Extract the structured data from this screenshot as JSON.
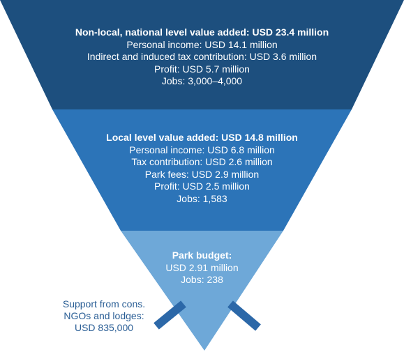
{
  "tiers": [
    {
      "heading": "Non-local, national level value added: USD 23.4 million",
      "lines": [
        "Personal income: USD 14.1 million",
        "Indirect and induced tax contribution: USD 3.6 million",
        "Profit: USD 5.7 million",
        "Jobs: 3,000–4,000"
      ],
      "color": "#1d4f7e"
    },
    {
      "heading": "Local level value added: USD 14.8 million",
      "lines": [
        "Personal income: USD 6.8 million",
        "Tax contribution: USD 2.6 million",
        "Park fees: USD 2.9 million",
        "Profit: USD 2.5 million",
        "Jobs: 1,583"
      ],
      "color": "#2c74b8"
    },
    {
      "heading": "Park budget:",
      "lines": [
        "USD 2.91 million",
        "Jobs: 238"
      ],
      "color": "#6ea8d8"
    }
  ],
  "support": {
    "lines": [
      "Support from cons.",
      "NGOs and lodges:",
      "USD 835,000"
    ],
    "text_color": "#2a5e95",
    "arrow_color": "#2c68a8"
  }
}
